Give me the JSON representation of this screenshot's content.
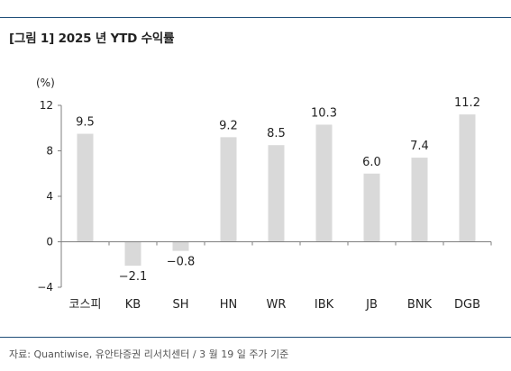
{
  "header": {
    "figure_title": "[그림 1] 2025 년 YTD 수익률"
  },
  "footer": {
    "source": "자료: Quantiwise, 유안타증권 리서치센터 / 3 월 19 일 주가 기준"
  },
  "colors": {
    "bar": "#d9d9d9",
    "rule": "#1f4e79",
    "axis": "#7f7f7f",
    "text": "#222222"
  },
  "chart_data": {
    "type": "bar",
    "unit_label": "(%)",
    "categories": [
      "코스피",
      "KB",
      "SH",
      "HN",
      "WR",
      "IBK",
      "JB",
      "BNK",
      "DGB"
    ],
    "values": [
      9.5,
      -2.1,
      -0.8,
      9.2,
      8.5,
      10.3,
      6.0,
      7.4,
      11.2
    ],
    "value_labels": [
      "9.5",
      "−2.1",
      "−0.8",
      "9.2",
      "8.5",
      "10.3",
      "6.0",
      "7.4",
      "11.2"
    ],
    "ylim": [
      -4,
      12
    ],
    "yticks": [
      -4,
      0,
      4,
      8,
      12
    ],
    "ytick_labels": [
      "−4",
      "0",
      "4",
      "8",
      "12"
    ],
    "grid": false,
    "legend": "none"
  }
}
